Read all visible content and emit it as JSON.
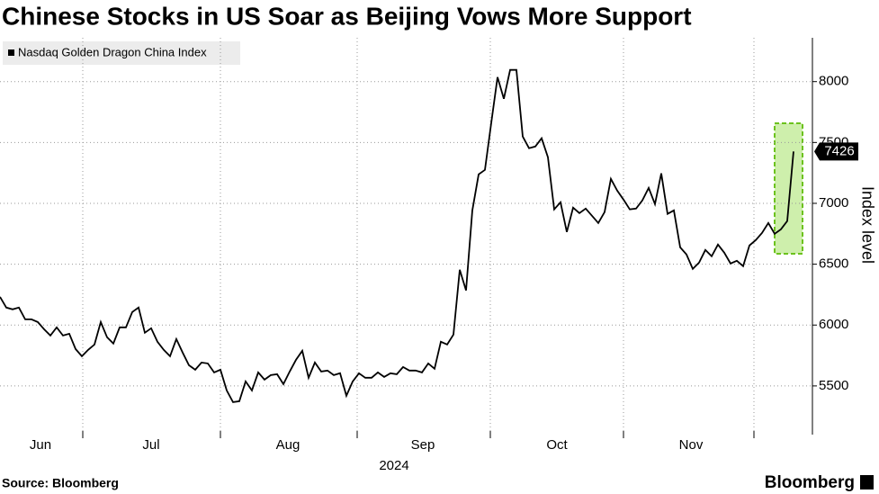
{
  "chart_data": {
    "type": "line",
    "title": "Chinese Stocks in US Soar as Beijing Vows More Support",
    "x_labels": [
      "Jun",
      "Jul",
      "Aug",
      "Sep",
      "Oct",
      "Nov"
    ],
    "x_year": "2024",
    "y_label": "Index level",
    "source": "Source: Bloomberg",
    "brand": "Bloomberg",
    "series": [
      {
        "name": "Nasdaq Golden Dragon China Index",
        "color": "#000000",
        "values": [
          6232,
          6144,
          6129,
          6144,
          6047,
          6047,
          6025,
          5966,
          5914,
          5981,
          5914,
          5929,
          5803,
          5744,
          5796,
          5840,
          6025,
          5900,
          5848,
          5981,
          5981,
          6107,
          6144,
          5937,
          5974,
          5863,
          5796,
          5744,
          5885,
          5774,
          5670,
          5633,
          5692,
          5685,
          5611,
          5633,
          5463,
          5367,
          5374,
          5537,
          5463,
          5611,
          5552,
          5589,
          5596,
          5515,
          5618,
          5714,
          5789,
          5567,
          5692,
          5618,
          5626,
          5589,
          5604,
          5419,
          5537,
          5604,
          5567,
          5567,
          5611,
          5574,
          5604,
          5596,
          5655,
          5626,
          5626,
          5611,
          5685,
          5641,
          5863,
          5840,
          5922,
          6454,
          6284,
          6942,
          7238,
          7275,
          7660,
          8037,
          7859,
          8096,
          8096,
          7549,
          7453,
          7467,
          7534,
          7379,
          6950,
          7009,
          6765,
          6964,
          6920,
          6957,
          6898,
          6839,
          6928,
          7201,
          7105,
          7031,
          6950,
          6957,
          7024,
          7127,
          6994,
          7246,
          6913,
          6942,
          6639,
          6580,
          6462,
          6513,
          6617,
          6565,
          6661,
          6595,
          6506,
          6528,
          6484,
          6654,
          6698,
          6757,
          6839,
          6750,
          6787,
          6854,
          7426
        ]
      }
    ],
    "ylim": [
      5100,
      8360
    ],
    "yticks": [
      5500,
      6000,
      6500,
      7000,
      7500,
      8000
    ],
    "grid": true
  }
}
